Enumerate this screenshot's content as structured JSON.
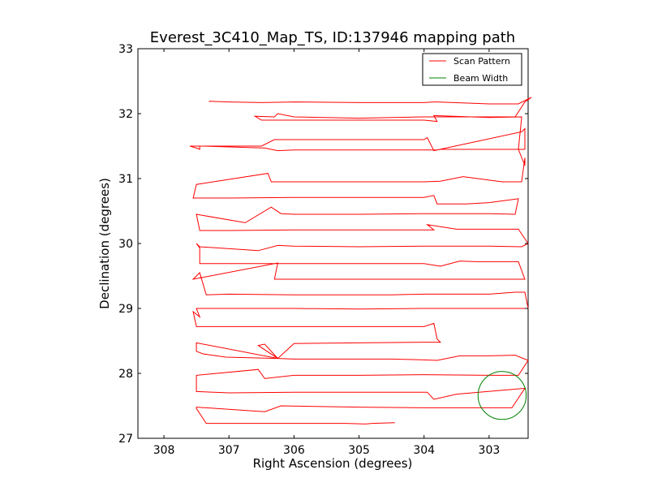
{
  "chart_data": {
    "type": "line",
    "title": "Everest_3C410_Map_TS, ID:137946 mapping path",
    "xlabel": "Right Ascension (degrees)",
    "ylabel": "Declination (degrees)",
    "xlim": [
      308.4,
      302.4
    ],
    "ylim": [
      27,
      33
    ],
    "x_ticks": [
      "308",
      "307",
      "306",
      "305",
      "304",
      "303"
    ],
    "x_tick_values": [
      308,
      307,
      306,
      305,
      304,
      303
    ],
    "y_ticks": [
      "27",
      "28",
      "29",
      "30",
      "31",
      "32",
      "33"
    ],
    "y_tick_values": [
      27,
      28,
      29,
      30,
      31,
      32,
      33
    ],
    "grid": false,
    "legend_position": "top-right",
    "series": [
      {
        "name": "Scan Pattern",
        "color": "#ff0000",
        "points": [
          [
            304.45,
            27.24
          ],
          [
            304.8,
            27.23
          ],
          [
            304.9,
            27.22
          ],
          [
            305.2,
            27.23
          ],
          [
            306.0,
            27.23
          ],
          [
            307.0,
            27.23
          ],
          [
            307.35,
            27.23
          ],
          [
            307.5,
            27.46
          ],
          [
            307.5,
            27.48
          ],
          [
            306.45,
            27.41
          ],
          [
            306.2,
            27.5
          ],
          [
            305.0,
            27.48
          ],
          [
            304.0,
            27.47
          ],
          [
            303.0,
            27.47
          ],
          [
            302.65,
            27.47
          ],
          [
            302.45,
            27.77
          ],
          [
            303.5,
            27.68
          ],
          [
            303.85,
            27.6
          ],
          [
            303.95,
            27.71
          ],
          [
            305.0,
            27.71
          ],
          [
            306.0,
            27.71
          ],
          [
            307.0,
            27.7
          ],
          [
            307.5,
            27.72
          ],
          [
            307.5,
            27.97
          ],
          [
            306.55,
            28.06
          ],
          [
            306.45,
            27.92
          ],
          [
            306.0,
            27.97
          ],
          [
            305.0,
            27.97
          ],
          [
            304.0,
            27.98
          ],
          [
            303.0,
            27.97
          ],
          [
            302.55,
            27.97
          ],
          [
            302.55,
            27.97
          ],
          [
            302.4,
            28.2
          ],
          [
            302.6,
            28.28
          ],
          [
            303.0,
            28.27
          ],
          [
            303.45,
            28.27
          ],
          [
            303.8,
            28.2
          ],
          [
            304.05,
            28.21
          ],
          [
            304.5,
            28.22
          ],
          [
            305.0,
            28.22
          ],
          [
            306.0,
            28.22
          ],
          [
            306.25,
            28.23
          ],
          [
            306.55,
            28.43
          ],
          [
            306.45,
            28.45
          ],
          [
            306.25,
            28.23
          ],
          [
            307.5,
            28.47
          ],
          [
            307.5,
            28.34
          ],
          [
            307.4,
            28.3
          ],
          [
            307.05,
            28.25
          ],
          [
            306.25,
            28.23
          ],
          [
            306.0,
            28.46
          ],
          [
            305.0,
            28.47
          ],
          [
            304.0,
            28.48
          ],
          [
            303.75,
            28.48
          ],
          [
            303.8,
            28.53
          ],
          [
            303.85,
            28.77
          ],
          [
            304.0,
            28.72
          ],
          [
            305.0,
            28.72
          ],
          [
            306.0,
            28.72
          ],
          [
            307.0,
            28.72
          ],
          [
            307.5,
            28.72
          ],
          [
            307.55,
            28.95
          ],
          [
            307.45,
            28.87
          ],
          [
            307.5,
            29.0
          ],
          [
            306.0,
            29.0
          ],
          [
            305.0,
            28.99
          ],
          [
            304.0,
            29.0
          ],
          [
            303.0,
            29.0
          ],
          [
            302.4,
            29.0
          ],
          [
            302.45,
            29.25
          ],
          [
            302.6,
            29.25
          ],
          [
            303.0,
            29.22
          ],
          [
            303.35,
            29.22
          ],
          [
            304.0,
            29.22
          ],
          [
            304.5,
            29.21
          ],
          [
            305.0,
            29.21
          ],
          [
            306.0,
            29.21
          ],
          [
            307.0,
            29.22
          ],
          [
            307.35,
            29.21
          ],
          [
            307.45,
            29.55
          ],
          [
            307.55,
            29.45
          ],
          [
            306.25,
            29.7
          ],
          [
            306.3,
            29.45
          ],
          [
            306.0,
            29.45
          ],
          [
            305.0,
            29.45
          ],
          [
            304.0,
            29.45
          ],
          [
            303.0,
            29.45
          ],
          [
            302.45,
            29.45
          ],
          [
            302.55,
            29.72
          ],
          [
            303.2,
            29.72
          ],
          [
            303.45,
            29.73
          ],
          [
            303.75,
            29.65
          ],
          [
            304.0,
            29.69
          ],
          [
            305.0,
            29.69
          ],
          [
            306.0,
            29.69
          ],
          [
            307.0,
            29.69
          ],
          [
            307.45,
            29.69
          ],
          [
            307.45,
            29.93
          ],
          [
            307.5,
            30.0
          ],
          [
            307.45,
            29.95
          ],
          [
            306.55,
            29.89
          ],
          [
            306.25,
            29.97
          ],
          [
            306.0,
            29.96
          ],
          [
            305.0,
            29.95
          ],
          [
            304.0,
            29.96
          ],
          [
            303.0,
            29.96
          ],
          [
            302.5,
            29.95
          ],
          [
            302.4,
            30.0
          ],
          [
            302.55,
            30.22
          ],
          [
            303.5,
            30.22
          ],
          [
            303.95,
            30.29
          ],
          [
            303.85,
            30.21
          ],
          [
            304.0,
            30.21
          ],
          [
            305.0,
            30.21
          ],
          [
            306.0,
            30.21
          ],
          [
            307.0,
            30.2
          ],
          [
            307.45,
            30.2
          ],
          [
            307.5,
            30.45
          ],
          [
            306.75,
            30.32
          ],
          [
            306.35,
            30.56
          ],
          [
            306.2,
            30.46
          ],
          [
            306.0,
            30.45
          ],
          [
            305.0,
            30.45
          ],
          [
            304.0,
            30.46
          ],
          [
            303.0,
            30.46
          ],
          [
            302.6,
            30.45
          ],
          [
            302.6,
            30.45
          ],
          [
            302.55,
            30.69
          ],
          [
            303.0,
            30.63
          ],
          [
            303.35,
            30.61
          ],
          [
            303.8,
            30.61
          ],
          [
            303.85,
            30.74
          ],
          [
            304.0,
            30.71
          ],
          [
            305.0,
            30.71
          ],
          [
            306.0,
            30.71
          ],
          [
            307.0,
            30.7
          ],
          [
            307.55,
            30.7
          ],
          [
            307.5,
            30.91
          ],
          [
            306.4,
            31.08
          ],
          [
            306.35,
            30.95
          ],
          [
            306.0,
            30.95
          ],
          [
            305.0,
            30.95
          ],
          [
            304.0,
            30.95
          ],
          [
            303.75,
            30.96
          ],
          [
            303.4,
            31.03
          ],
          [
            302.8,
            30.95
          ],
          [
            302.5,
            30.95
          ],
          [
            302.45,
            31.32
          ],
          [
            302.45,
            31.2
          ],
          [
            302.55,
            31.45
          ],
          [
            302.55,
            31.45
          ],
          [
            303.0,
            31.45
          ],
          [
            303.75,
            31.45
          ],
          [
            303.85,
            31.43
          ],
          [
            303.95,
            31.63
          ],
          [
            304.0,
            31.6
          ],
          [
            305.0,
            31.6
          ],
          [
            306.0,
            31.6
          ],
          [
            306.3,
            31.6
          ],
          [
            306.5,
            31.5
          ],
          [
            307.6,
            31.5
          ],
          [
            307.5,
            31.47
          ],
          [
            307.45,
            31.45
          ],
          [
            307.45,
            31.5
          ],
          [
            307.4,
            31.5
          ],
          [
            306.45,
            31.47
          ],
          [
            306.25,
            31.43
          ],
          [
            306.0,
            31.44
          ],
          [
            305.0,
            31.44
          ],
          [
            304.0,
            31.44
          ],
          [
            303.8,
            31.44
          ],
          [
            302.5,
            31.72
          ],
          [
            302.45,
            31.77
          ],
          [
            302.45,
            31.45
          ],
          [
            302.55,
            31.45
          ],
          [
            302.5,
            31.94
          ],
          [
            302.5,
            31.95
          ],
          [
            303.0,
            31.94
          ],
          [
            303.85,
            31.97
          ],
          [
            303.8,
            31.88
          ],
          [
            304.0,
            31.9
          ],
          [
            305.0,
            31.9
          ],
          [
            306.0,
            31.9
          ],
          [
            306.5,
            31.9
          ],
          [
            306.6,
            31.96
          ],
          [
            306.3,
            31.95
          ],
          [
            306.25,
            32.0
          ],
          [
            306.0,
            31.95
          ],
          [
            305.0,
            31.93
          ],
          [
            304.0,
            31.95
          ],
          [
            303.0,
            31.95
          ],
          [
            302.6,
            31.95
          ],
          [
            302.6,
            31.95
          ],
          [
            302.45,
            32.18
          ],
          [
            302.35,
            32.25
          ],
          [
            302.55,
            32.15
          ],
          [
            303.0,
            32.15
          ],
          [
            303.8,
            32.18
          ],
          [
            303.85,
            32.18
          ],
          [
            304.0,
            32.17
          ],
          [
            305.0,
            32.17
          ],
          [
            306.0,
            32.18
          ],
          [
            306.5,
            32.17
          ],
          [
            307.0,
            32.18
          ],
          [
            307.3,
            32.19
          ],
          [
            307.3,
            32.18
          ]
        ]
      },
      {
        "name": "Beam Width",
        "color": "#008000",
        "shape": "circle",
        "center": [
          302.8,
          27.66
        ],
        "radius": 0.37
      }
    ]
  }
}
